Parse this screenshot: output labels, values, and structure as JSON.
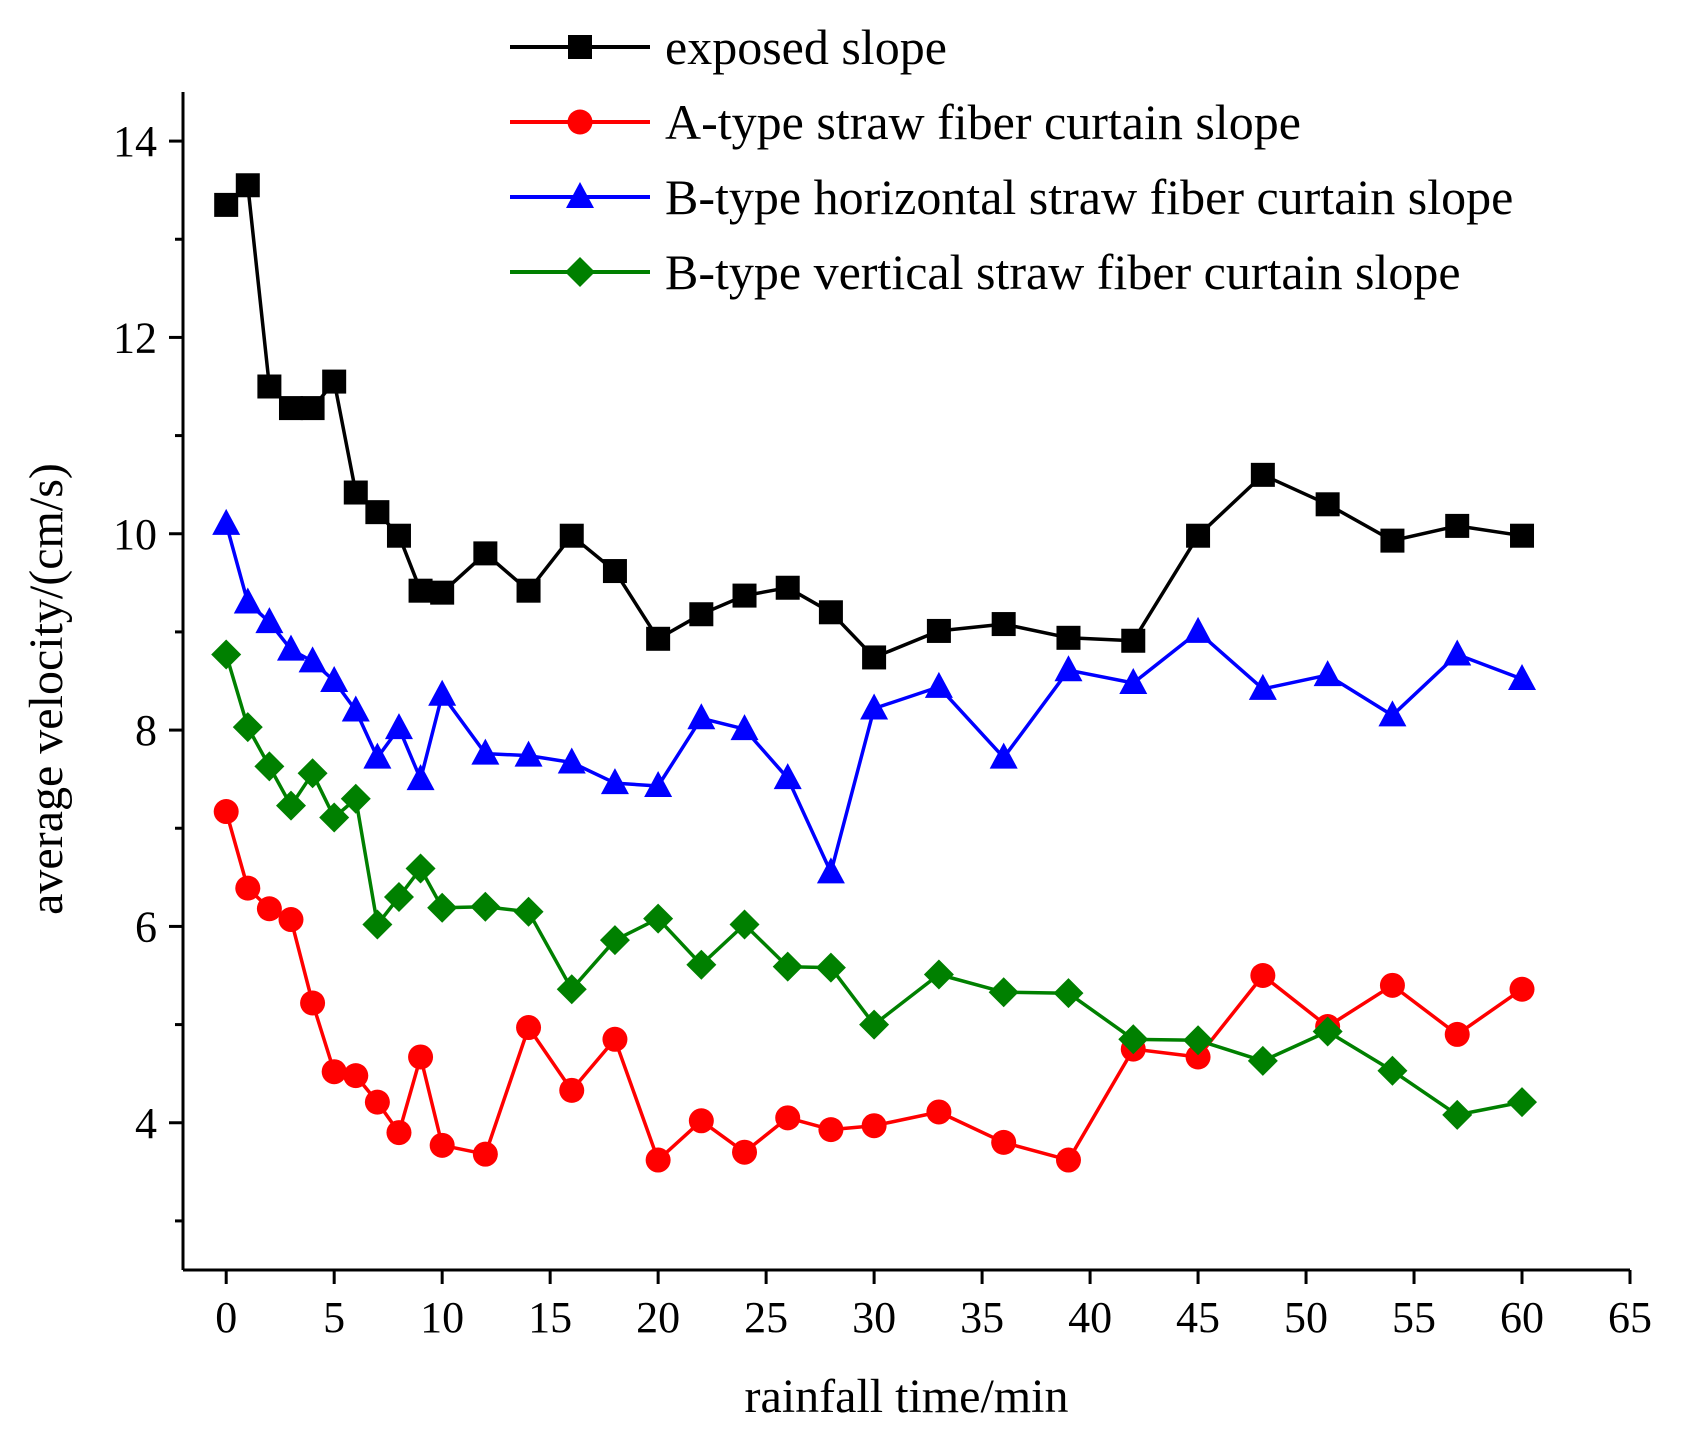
{
  "chart_data": {
    "type": "line",
    "title": "",
    "xlabel": "rainfall time/min",
    "ylabel": "average velocity/(cm/s)",
    "xlim": [
      -2,
      65
    ],
    "ylim": [
      2.5,
      14.5
    ],
    "x_ticks": [
      0,
      5,
      10,
      15,
      20,
      25,
      30,
      35,
      40,
      45,
      50,
      55,
      60,
      65
    ],
    "y_ticks": [
      4,
      6,
      8,
      10,
      12,
      14
    ],
    "y_minor_ticks": [
      3,
      5,
      7,
      9,
      11,
      13
    ],
    "legend_position": "top-right",
    "series": [
      {
        "name": "exposed slope",
        "color": "#000000",
        "marker": "square",
        "x": [
          0,
          1,
          2,
          3,
          4,
          5,
          6,
          7,
          8,
          9,
          10,
          12,
          14,
          16,
          18,
          20,
          22,
          24,
          26,
          28,
          30,
          33,
          36,
          39,
          42,
          45,
          48,
          51,
          54,
          57,
          60
        ],
        "values": [
          13.35,
          13.55,
          11.5,
          11.28,
          11.28,
          11.55,
          10.42,
          10.22,
          9.98,
          9.42,
          9.4,
          9.8,
          9.42,
          9.98,
          9.62,
          8.93,
          9.18,
          9.37,
          9.45,
          9.2,
          8.74,
          9.01,
          9.08,
          8.94,
          8.91,
          9.98,
          10.6,
          10.3,
          9.93,
          10.08,
          9.98
        ]
      },
      {
        "name": "A-type straw fiber curtain slope",
        "color": "#ff0000",
        "marker": "circle",
        "x": [
          0,
          1,
          2,
          3,
          4,
          5,
          6,
          7,
          8,
          9,
          10,
          12,
          14,
          16,
          18,
          20,
          22,
          24,
          26,
          28,
          30,
          33,
          36,
          39,
          42,
          45,
          48,
          51,
          54,
          57,
          60
        ],
        "values": [
          7.17,
          6.39,
          6.18,
          6.07,
          5.22,
          4.52,
          4.48,
          4.21,
          3.9,
          4.67,
          3.77,
          3.68,
          4.97,
          4.33,
          4.85,
          3.62,
          4.02,
          3.7,
          4.05,
          3.93,
          3.97,
          4.11,
          3.8,
          3.62,
          4.75,
          4.67,
          5.5,
          4.98,
          5.4,
          4.9,
          5.36
        ]
      },
      {
        "name": "B-type horizontal straw fiber curtain slope",
        "color": "#0000ff",
        "marker": "triangle",
        "x": [
          0,
          1,
          2,
          3,
          4,
          5,
          6,
          7,
          8,
          9,
          10,
          12,
          14,
          16,
          18,
          20,
          22,
          24,
          26,
          28,
          30,
          33,
          36,
          39,
          42,
          45,
          48,
          51,
          54,
          57,
          60
        ],
        "values": [
          10.1,
          9.3,
          9.1,
          8.82,
          8.7,
          8.5,
          8.2,
          7.72,
          8.02,
          7.5,
          8.36,
          7.76,
          7.74,
          7.67,
          7.46,
          7.43,
          8.12,
          8.01,
          7.51,
          6.55,
          8.22,
          8.44,
          7.72,
          8.61,
          8.48,
          9.0,
          8.42,
          8.56,
          8.15,
          8.77,
          8.52
        ]
      },
      {
        "name": "B-type vertical straw fiber curtain slope",
        "color": "#008000",
        "marker": "diamond",
        "x": [
          0,
          1,
          2,
          3,
          4,
          5,
          6,
          7,
          8,
          9,
          10,
          12,
          14,
          16,
          18,
          20,
          22,
          24,
          26,
          28,
          30,
          33,
          36,
          39,
          42,
          45,
          48,
          51,
          54,
          57,
          60
        ],
        "values": [
          8.77,
          8.03,
          7.63,
          7.23,
          7.56,
          7.11,
          7.3,
          6.02,
          6.3,
          6.59,
          6.19,
          6.2,
          6.15,
          5.36,
          5.86,
          6.08,
          5.61,
          6.02,
          5.59,
          5.58,
          5.0,
          5.51,
          5.33,
          5.32,
          4.85,
          4.84,
          4.63,
          4.93,
          4.53,
          4.08,
          4.21
        ]
      }
    ]
  }
}
